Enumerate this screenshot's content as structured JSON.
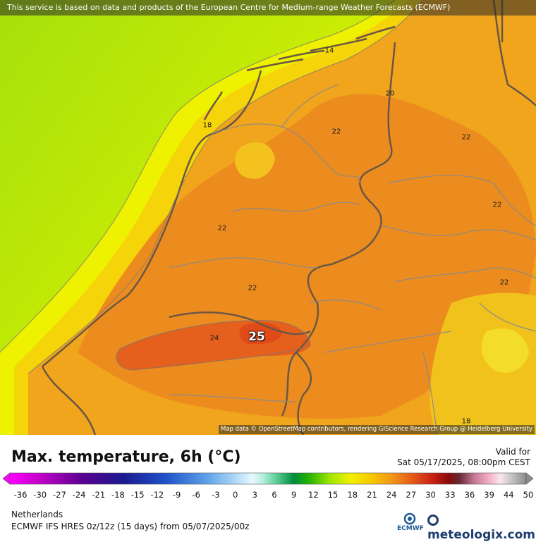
{
  "banner": {
    "text": "This service is based on data and products of the European Centre for Medium-range Weather Forecasts (ECMWF)"
  },
  "attribution": {
    "text": "Map data © OpenStreetMap contributors, rendering GIScience Research Group @ Heidelberg University"
  },
  "map_labels": [
    {
      "text": "14"
    },
    {
      "text": "20"
    },
    {
      "text": "18"
    },
    {
      "text": "22"
    },
    {
      "text": "22"
    },
    {
      "text": "22"
    },
    {
      "text": "22"
    },
    {
      "text": "22"
    },
    {
      "text": "22"
    },
    {
      "text": "24"
    },
    {
      "text": "18"
    }
  ],
  "highlight_value": "25",
  "legend": {
    "title": "Max. temperature, 6h (°C)",
    "valid_label": "Valid for",
    "valid_time": "Sat 05/17/2025, 08:00pm CEST",
    "ticks": [
      "-36",
      "-30",
      "-27",
      "-24",
      "-21",
      "-18",
      "-15",
      "-12",
      "-9",
      "-6",
      "-3",
      "0",
      "3",
      "6",
      "9",
      "12",
      "15",
      "18",
      "21",
      "24",
      "27",
      "30",
      "33",
      "36",
      "39",
      "44",
      "50"
    ]
  },
  "info": {
    "region": "Netherlands",
    "model": "ECMWF IFS HRES 0z/12z (15 days) from  05/07/2025/00z"
  },
  "logos": {
    "ecmwf": "ECMWF",
    "meteologix": "meteologix.com"
  },
  "colors": {
    "sea_cool": "#aee30c",
    "sea_mid": "#d8f000",
    "coast_yellow": "#f3e600",
    "land_light": "#f3b519",
    "land_orange": "#ef9a1e",
    "land_warm": "#ea7a1a",
    "hot_spot": "#e5541a",
    "border": "#6b5744"
  }
}
